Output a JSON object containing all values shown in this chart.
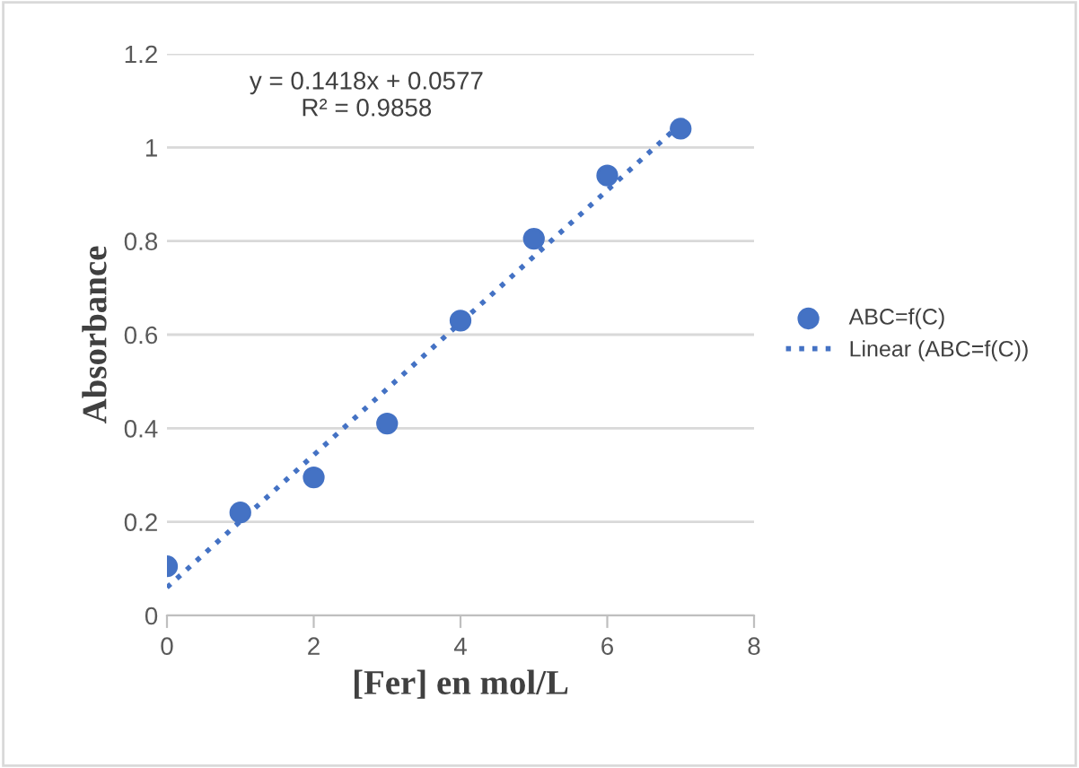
{
  "chart_data": {
    "type": "scatter",
    "xlabel": "[Fer] en mol/L",
    "ylabel": "Absorbance",
    "series": [
      {
        "name": "ABC=f(C)",
        "color": "#4472c4",
        "marker": "circle",
        "x": [
          0,
          1,
          2,
          3,
          4,
          5,
          6,
          7
        ],
        "values": [
          0.105,
          0.22,
          0.295,
          0.41,
          0.63,
          0.805,
          0.94,
          1.04
        ]
      },
      {
        "name": "Linear (ABC=f(C))",
        "type": "line",
        "color": "#4472c4",
        "line_style": "dotted",
        "marker": "none",
        "x": [
          0,
          7
        ],
        "values": [
          0.06,
          1.05
        ]
      }
    ],
    "annotations": [
      "y = 0.1418x + 0.0577\nR² = 0.9858"
    ],
    "xlim": [
      0,
      8
    ],
    "xticks": [
      0,
      2,
      4,
      6,
      8
    ],
    "ylim": [
      0,
      1.2
    ],
    "yticks": [
      0,
      0.2,
      0.4,
      0.6,
      0.8,
      1,
      1.2
    ],
    "grid": "y",
    "legend": "right"
  }
}
